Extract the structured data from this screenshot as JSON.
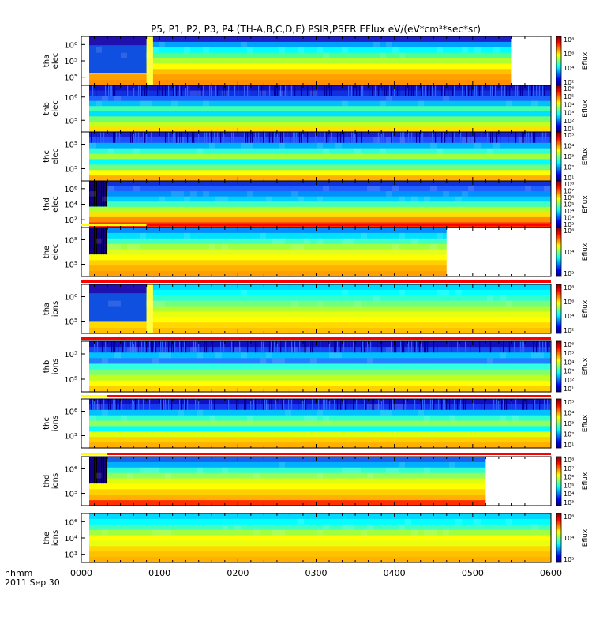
{
  "title": "P5, P1, P2, P3, P4 (TH-A,B,C,D,E) PSIR,PSER EFlux eV/(eV*cm²*sec*sr)",
  "time_axis": {
    "label_unit": "hhmm",
    "date": "2011 Sep 30",
    "ticks": [
      "0000",
      "0100",
      "0200",
      "0300",
      "0400",
      "0500",
      "0600"
    ]
  },
  "colorbar_label": "Eflux",
  "chart_data": [
    {
      "type": "heatmap",
      "ylabel": [
        "tha",
        "elec"
      ],
      "y_ticks": [
        "10⁶",
        "10⁵",
        "10⁵"
      ],
      "colorbar_ticks": [
        "10⁸",
        "10⁶",
        "10⁴",
        "10²"
      ],
      "data_end": "0530",
      "status_bar": null,
      "bands": [
        "#2020c8",
        "#00a0ff",
        "#00ffff",
        "#50ff90",
        "#b0ff30",
        "#ffff00",
        "#ffc000",
        "#ffa000",
        "#ff9000"
      ]
    },
    {
      "type": "heatmap",
      "ylabel": [
        "thb",
        "elec"
      ],
      "y_ticks": [
        "10⁶",
        "10⁵"
      ],
      "colorbar_ticks": [
        "10⁶",
        "10⁵",
        "10⁴",
        "10³",
        "10²",
        "10¹"
      ],
      "data_end": "0600",
      "status_bar": null,
      "bands": [
        "#1010c0",
        "#1030e0",
        "#2060ff",
        "#00c0ff",
        "#40ffb0",
        "#00e0ff",
        "#70ff70",
        "#c0ff20",
        "#ffe000"
      ]
    },
    {
      "type": "heatmap",
      "ylabel": [
        "thc",
        "elec"
      ],
      "y_ticks": [
        "10⁵",
        "10⁵"
      ],
      "colorbar_ticks": [
        "10⁵",
        "10⁴",
        "10³",
        "10²",
        "10¹"
      ],
      "data_end": "0600",
      "status_bar": null,
      "bands": [
        "#1a20d0",
        "#2050ff",
        "#00b0ff",
        "#30ffd0",
        "#a0ff40",
        "#00ffff",
        "#70ff80",
        "#ffff00",
        "#ffb000"
      ]
    },
    {
      "type": "heatmap",
      "ylabel": [
        "thd",
        "elec"
      ],
      "y_ticks": [
        "10⁶",
        "10⁴",
        "10²"
      ],
      "colorbar_ticks": [
        "10⁸",
        "10⁷",
        "10⁶",
        "10⁵",
        "10⁴",
        "10³",
        "10²"
      ],
      "data_end": "0600",
      "status_bar": null,
      "bands": [
        "#1030d8",
        "#2060ff",
        "#0090ff",
        "#00d0ff",
        "#40ffc0",
        "#b0ff30",
        "#ffe000",
        "#ff9000",
        "#ff3000"
      ]
    },
    {
      "type": "heatmap",
      "ylabel": [
        "the",
        "elec"
      ],
      "y_ticks": [
        "10⁵",
        "10⁵"
      ],
      "colorbar_ticks": [
        "10⁶",
        "10⁴",
        "10²"
      ],
      "data_end": "0440",
      "status_bar": {
        "gap_end": "0050"
      },
      "bands": [
        "#0090ff",
        "#00e0ff",
        "#40ffc0",
        "#a0ff40",
        "#e0ff20",
        "#ffff00",
        "#ffd000",
        "#ffb000",
        "#ffa000"
      ]
    },
    {
      "type": "heatmap",
      "ylabel": [
        "tha",
        "ions"
      ],
      "y_ticks": [
        "10⁶",
        "10⁵"
      ],
      "colorbar_ticks": [
        "10⁸",
        "10⁶",
        "10⁴",
        "10²"
      ],
      "data_end": "0600",
      "status_bar": {
        "gap_end": "0000"
      },
      "bands": [
        "#00d8ff",
        "#00ffff",
        "#30ffd0",
        "#70ff80",
        "#b0ff30",
        "#e8ff10",
        "#ffff00",
        "#ffd800",
        "#ffc000"
      ]
    },
    {
      "type": "heatmap",
      "ylabel": [
        "thb",
        "ions"
      ],
      "y_ticks": [
        "10⁵",
        "10⁵"
      ],
      "colorbar_ticks": [
        "10⁶",
        "10⁵",
        "10⁴",
        "10³",
        "10²",
        "10¹"
      ],
      "data_end": "0600",
      "status_bar": {
        "gap_end": "0000"
      },
      "bands": [
        "#1010c0",
        "#1848f0",
        "#00c0ff",
        "#2080ff",
        "#30ffe0",
        "#80ff70",
        "#c0ff20",
        "#ffff00",
        "#ffd000"
      ]
    },
    {
      "type": "heatmap",
      "ylabel": [
        "thc",
        "ions"
      ],
      "y_ticks": [
        "10⁶",
        "10³"
      ],
      "colorbar_ticks": [
        "10⁵",
        "10⁴",
        "10³",
        "10²",
        "10¹"
      ],
      "data_end": "0600",
      "status_bar": {
        "gap_end": "0020"
      },
      "bands": [
        "#1010c0",
        "#1838f0",
        "#00c0ff",
        "#30ffd0",
        "#90ff60",
        "#00ffff",
        "#e0ff10",
        "#ffd000",
        "#ffb000"
      ]
    },
    {
      "type": "heatmap",
      "ylabel": [
        "thd",
        "ions"
      ],
      "y_ticks": [
        "10⁶",
        "10⁵"
      ],
      "colorbar_ticks": [
        "10⁸",
        "10⁷",
        "10⁶",
        "10⁵",
        "10⁴",
        "10³"
      ],
      "data_end": "0510",
      "status_bar": {
        "gap_end": "0020"
      },
      "bands": [
        "#1860f0",
        "#00b0ff",
        "#30ffd0",
        "#90ff60",
        "#e0ff10",
        "#ffff00",
        "#ffd000",
        "#ffb000",
        "#ff3000"
      ]
    },
    {
      "type": "heatmap",
      "ylabel": [
        "the",
        "ions"
      ],
      "y_ticks": [
        "10⁶",
        "10⁴",
        "10³"
      ],
      "colorbar_ticks": [
        "10⁶",
        "10⁴",
        "10²"
      ],
      "data_end": "0600",
      "status_bar": null,
      "bands": [
        "#00d8ff",
        "#00ffff",
        "#40ffc0",
        "#a0ff40",
        "#ffff00",
        "#e8ff10",
        "#ffd800",
        "#ffc000",
        "#ffb000"
      ]
    }
  ]
}
